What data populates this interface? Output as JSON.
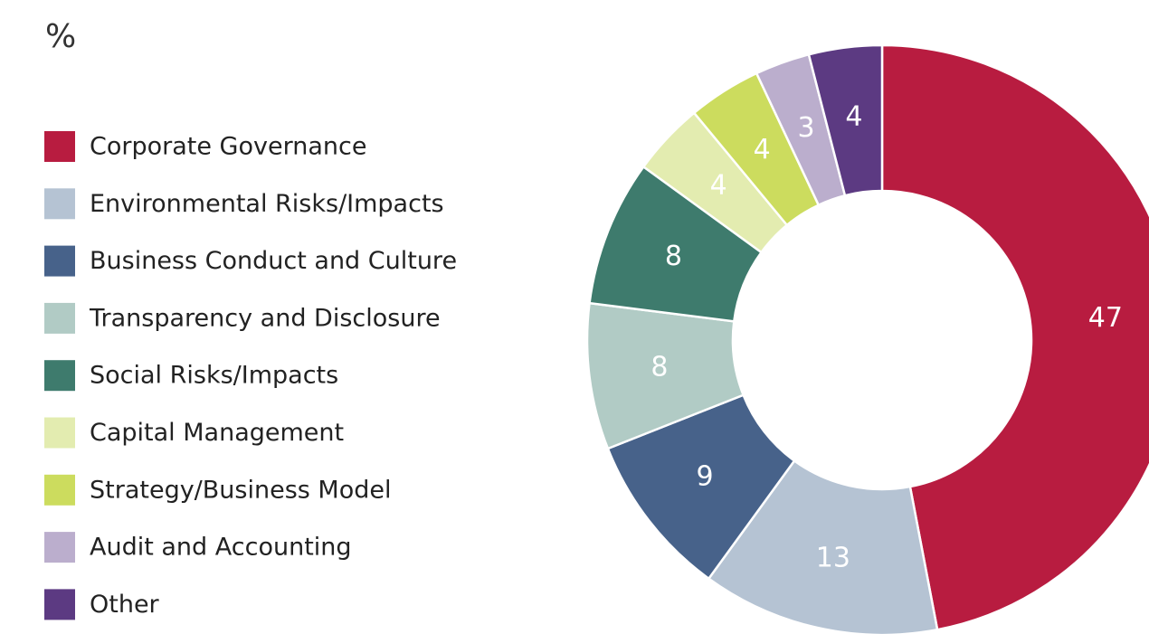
{
  "chart_data": {
    "type": "donut",
    "subtitle": "%",
    "categories": [
      "Corporate Governance",
      "Environmental Risks/Impacts",
      "Business Conduct and Culture",
      "Transparency and Disclosure",
      "Social Risks/Impacts",
      "Capital Management",
      "Strategy/Business Model",
      "Audit and Accounting",
      "Other"
    ],
    "values": [
      47,
      13,
      9,
      8,
      8,
      4,
      4,
      3,
      4
    ],
    "colors": [
      "#b81c40",
      "#b5c3d3",
      "#47628a",
      "#b1cbc5",
      "#3e7b6d",
      "#e3ecb0",
      "#ccdc5e",
      "#bbaecd",
      "#5c3a82"
    ],
    "legend": "left"
  }
}
